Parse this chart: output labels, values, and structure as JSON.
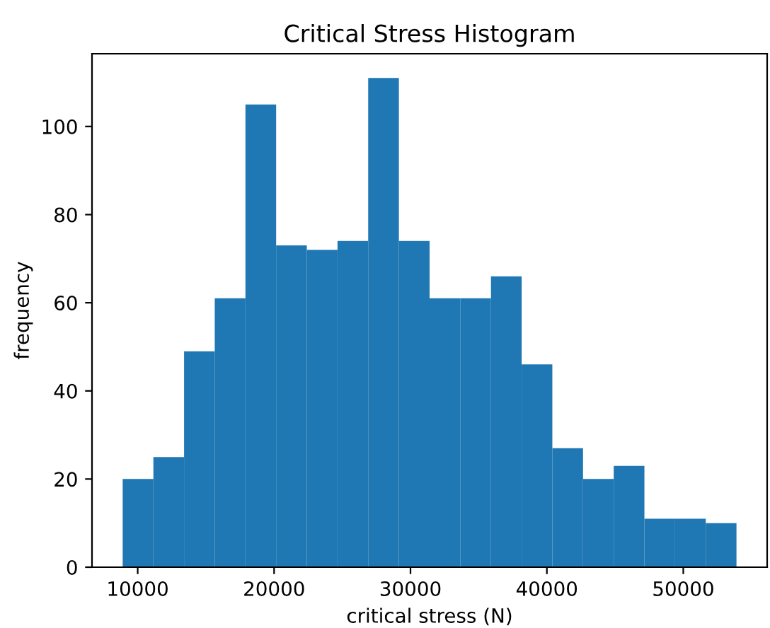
{
  "chart_data": {
    "type": "histogram",
    "title": "Critical Stress Histogram",
    "xlabel": "critical stress (N)",
    "ylabel": "frequency",
    "bins": [
      8900,
      11150,
      13400,
      15650,
      17900,
      20150,
      22400,
      24650,
      26900,
      29150,
      31400,
      33650,
      35900,
      38150,
      40400,
      42650,
      44900,
      47150,
      49400,
      51650,
      53900
    ],
    "values": [
      20,
      25,
      49,
      61,
      105,
      73,
      72,
      74,
      111,
      74,
      61,
      61,
      66,
      46,
      27,
      20,
      23,
      11,
      11,
      10
    ],
    "color": "#1f77b4",
    "xlim": [
      6650,
      56150
    ],
    "xticks": [
      10000,
      20000,
      30000,
      40000,
      50000
    ],
    "ylim": [
      0,
      116.5
    ],
    "yticks": [
      0,
      20,
      40,
      60,
      80,
      100
    ]
  }
}
